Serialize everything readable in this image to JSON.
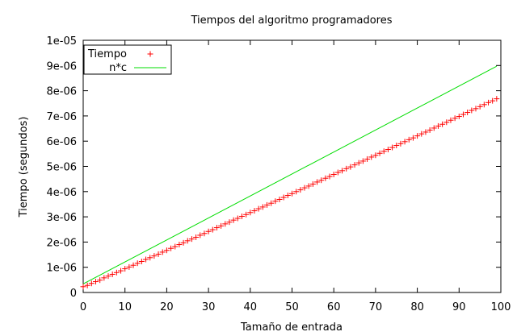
{
  "chart_data": {
    "type": "scatter",
    "title": "Tiempos del algoritmo programadores",
    "xlabel": "Tamaño de entrada",
    "ylabel": "Tiempo (segundos)",
    "xlim": [
      0,
      100
    ],
    "ylim": [
      0,
      1e-05
    ],
    "x_ticks": [
      "0",
      "10",
      "20",
      "30",
      "40",
      "50",
      "60",
      "70",
      "80",
      "90",
      "100"
    ],
    "y_ticks": [
      "0",
      "1e-06",
      "2e-06",
      "3e-06",
      "4e-06",
      "5e-06",
      "6e-06",
      "7e-06",
      "8e-06",
      "9e-06",
      "1e-05"
    ],
    "x_tick_values": [
      0,
      10,
      20,
      30,
      40,
      50,
      60,
      70,
      80,
      90,
      100
    ],
    "y_tick_values": [
      0,
      1e-06,
      2e-06,
      3e-06,
      4e-06,
      5e-06,
      6e-06,
      7e-06,
      8e-06,
      9e-06,
      1e-05
    ],
    "grid": false,
    "legend": "top-left",
    "series": [
      {
        "name": "Tiempo",
        "kind": "points",
        "marker": "+",
        "color": "#ff0000",
        "x": [
          0,
          1,
          2,
          3,
          4,
          5,
          6,
          7,
          8,
          9,
          10,
          11,
          12,
          13,
          14,
          15,
          16,
          17,
          18,
          19,
          20,
          21,
          22,
          23,
          24,
          25,
          26,
          27,
          28,
          29,
          30,
          31,
          32,
          33,
          34,
          35,
          36,
          37,
          38,
          39,
          40,
          41,
          42,
          43,
          44,
          45,
          46,
          47,
          48,
          49,
          50,
          51,
          52,
          53,
          54,
          55,
          56,
          57,
          58,
          59,
          60,
          61,
          62,
          63,
          64,
          65,
          66,
          67,
          68,
          69,
          70,
          71,
          72,
          73,
          74,
          75,
          76,
          77,
          78,
          79,
          80,
          81,
          82,
          83,
          84,
          85,
          86,
          87,
          88,
          89,
          90,
          91,
          92,
          93,
          94,
          95,
          96,
          97,
          98,
          99
        ],
        "y": [
          2.3e-07,
          2.8e-07,
          3.6e-07,
          4.3e-07,
          4.9e-07,
          5.8e-07,
          6.5e-07,
          7.2e-07,
          7.9e-07,
          8.6e-07,
          9.4e-07,
          1.01e-06,
          1.08e-06,
          1.16e-06,
          1.23e-06,
          1.31e-06,
          1.38e-06,
          1.45e-06,
          1.52e-06,
          1.6e-06,
          1.67e-06,
          1.75e-06,
          1.82e-06,
          1.9e-06,
          1.97e-06,
          2.05e-06,
          2.12e-06,
          2.19e-06,
          2.27e-06,
          2.34e-06,
          2.42e-06,
          2.49e-06,
          2.57e-06,
          2.64e-06,
          2.72e-06,
          2.79e-06,
          2.87e-06,
          2.94e-06,
          3.02e-06,
          3.09e-06,
          3.17e-06,
          3.24e-06,
          3.32e-06,
          3.39e-06,
          3.47e-06,
          3.54e-06,
          3.62e-06,
          3.69e-06,
          3.77e-06,
          3.85e-06,
          3.92e-06,
          4e-06,
          4.07e-06,
          4.15e-06,
          4.22e-06,
          4.3e-06,
          4.38e-06,
          4.45e-06,
          4.53e-06,
          4.6e-06,
          4.68e-06,
          4.76e-06,
          4.83e-06,
          4.91e-06,
          4.98e-06,
          5.06e-06,
          5.14e-06,
          5.21e-06,
          5.29e-06,
          5.37e-06,
          5.44e-06,
          5.52e-06,
          5.6e-06,
          5.67e-06,
          5.75e-06,
          5.83e-06,
          5.9e-06,
          5.98e-06,
          6.06e-06,
          6.13e-06,
          6.21e-06,
          6.29e-06,
          6.36e-06,
          6.44e-06,
          6.52e-06,
          6.6e-06,
          6.67e-06,
          6.75e-06,
          6.83e-06,
          6.91e-06,
          6.98e-06,
          7.06e-06,
          7.14e-06,
          7.22e-06,
          7.29e-06,
          7.37e-06,
          7.45e-06,
          7.53e-06,
          7.6e-06,
          7.68e-06
        ]
      },
      {
        "name": "n*c",
        "kind": "line",
        "color": "#00dd00",
        "x": [
          0,
          99
        ],
        "y": [
          3.4e-07,
          8.97e-06
        ]
      }
    ]
  }
}
